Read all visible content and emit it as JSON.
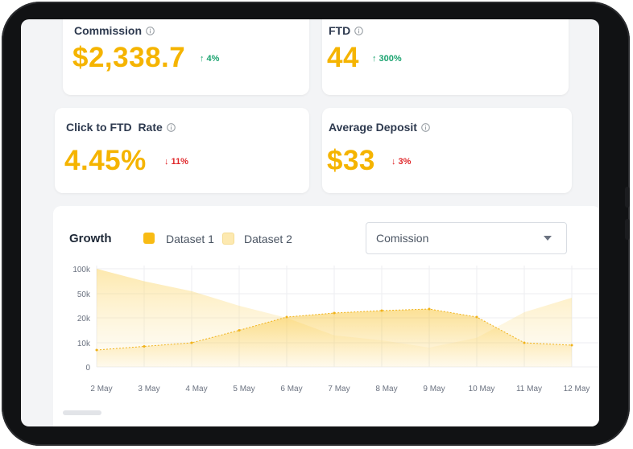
{
  "cards": [
    {
      "title": "Commission",
      "value": "$2,338.7",
      "delta": "↑ 4%",
      "trend": "up"
    },
    {
      "title": "FTD",
      "value": "44",
      "delta": "↑ 300%",
      "trend": "up"
    },
    {
      "title": "Click to FTD  Rate",
      "value": "4.45%",
      "delta": "↓ 11%",
      "trend": "down"
    },
    {
      "title": "Average Deposit",
      "value": "$33",
      "delta": "↓ 3%",
      "trend": "down"
    }
  ],
  "growth": {
    "title": "Growth",
    "legend": [
      {
        "label": "Dataset 1",
        "color": "#f8bb14"
      },
      {
        "label": "Dataset 2",
        "color": "#fde9b0"
      }
    ],
    "select": {
      "value": "Comission"
    }
  },
  "chart_data": {
    "type": "area",
    "x": [
      "2 May",
      "3 May",
      "4 May",
      "5 May",
      "6 May",
      "7 May",
      "8 May",
      "9 May",
      "10 May",
      "11 May",
      "12 May"
    ],
    "y_ticks": [
      "0",
      "10k",
      "20k",
      "50k",
      "100k"
    ],
    "series": [
      {
        "name": "Dataset 1",
        "color": "#f8bb14",
        "values": [
          7000,
          8500,
          10000,
          15000,
          21000,
          26000,
          29000,
          31000,
          21000,
          10000,
          9000
        ]
      },
      {
        "name": "Dataset 2",
        "color": "#fde9b0",
        "values": [
          100000,
          75000,
          55000,
          35000,
          20000,
          13000,
          11000,
          8000,
          12000,
          27000,
          45000
        ]
      }
    ],
    "grid": true
  }
}
